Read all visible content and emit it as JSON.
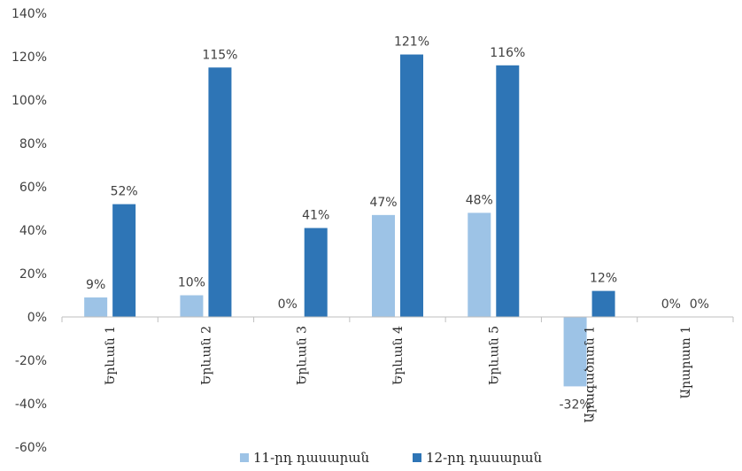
{
  "chart_data": {
    "type": "bar",
    "categories": [
      "Երևան 1",
      "Երևան 2",
      "Երևան 3",
      "Երևան 4",
      "Երևան 5",
      "Արագածոտն 1",
      "Արարատ 1"
    ],
    "series": [
      {
        "name": "11-րդ դասարան",
        "values": [
          9,
          10,
          0,
          47,
          48,
          -32,
          0
        ],
        "labels": [
          "9%",
          "10%",
          "0%",
          "47%",
          "48%",
          "-32%",
          "0%"
        ],
        "color": "#9dc3e6"
      },
      {
        "name": "12-րդ դասարան",
        "values": [
          52,
          115,
          41,
          121,
          116,
          12,
          0
        ],
        "labels": [
          "52%",
          "115%",
          "41%",
          "121%",
          "116%",
          "12%",
          "0%"
        ],
        "color": "#2e75b6"
      }
    ],
    "ylim": [
      -60,
      140
    ],
    "yticks": [
      -60,
      -40,
      -20,
      0,
      20,
      40,
      60,
      80,
      100,
      120,
      140
    ],
    "ytick_labels": [
      "-60%",
      "-40%",
      "-20%",
      "0%",
      "20%",
      "40%",
      "60%",
      "80%",
      "100%",
      "120%",
      "140%"
    ],
    "grid": false,
    "legend_position": "bottom"
  }
}
